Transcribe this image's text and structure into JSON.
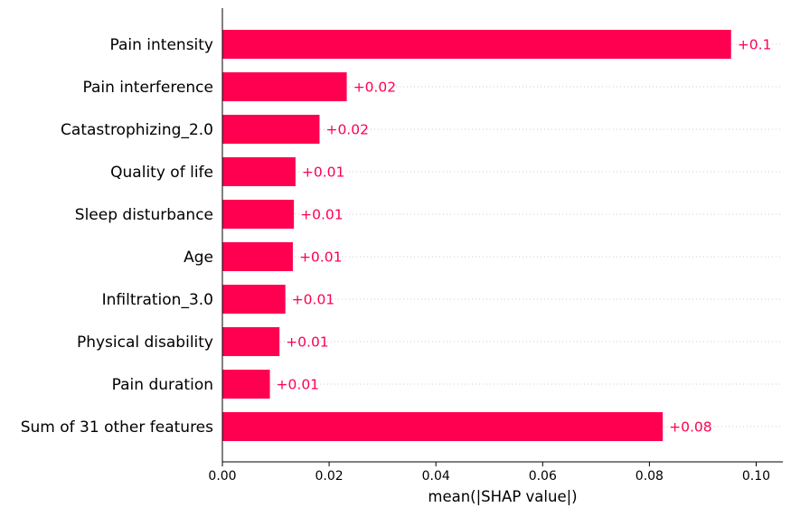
{
  "chart_data": {
    "type": "bar",
    "orientation": "horizontal",
    "categories": [
      "Pain intensity",
      "Pain interference",
      "Catastrophizing_2.0",
      "Quality of life",
      "Sleep disturbance",
      "Age",
      "Infiltration_3.0",
      "Physical disability",
      "Pain duration",
      "Sum of 31 other features"
    ],
    "values": [
      0.0953,
      0.0233,
      0.0182,
      0.0137,
      0.0134,
      0.0132,
      0.0118,
      0.0107,
      0.0089,
      0.0825
    ],
    "value_labels": [
      "+0.1",
      "+0.02",
      "+0.02",
      "+0.01",
      "+0.01",
      "+0.01",
      "+0.01",
      "+0.01",
      "+0.01",
      "+0.08"
    ],
    "xlabel": "mean(|SHAP value|)",
    "ylabel": "",
    "title": "",
    "xlim": [
      0.0,
      0.105
    ],
    "xticks": [
      0.0,
      0.02,
      0.04,
      0.06,
      0.08,
      0.1
    ],
    "xtick_labels": [
      "0.00",
      "0.02",
      "0.04",
      "0.06",
      "0.08",
      "0.10"
    ],
    "grid": "dotted horizontal row guides",
    "bar_color": "#ff0051",
    "label_color": "#ff0051"
  }
}
